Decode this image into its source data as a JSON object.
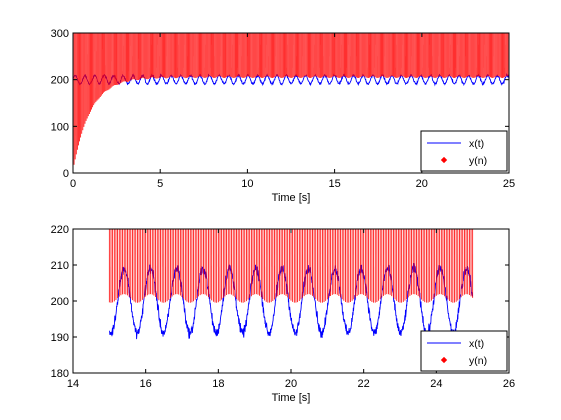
{
  "chart_data": [
    {
      "type": "line",
      "title": "",
      "xlabel": "Time [s]",
      "ylabel": "",
      "xlim": [
        0,
        25
      ],
      "ylim": [
        0,
        300
      ],
      "xticks": [
        "0",
        "5",
        "10",
        "15",
        "20",
        "25"
      ],
      "yticks": [
        "0",
        "100",
        "200",
        "300"
      ],
      "grid": false,
      "legend": "bottom-right",
      "series": [
        {
          "name": "x(t)",
          "style": "line",
          "color": "#0000ff",
          "model": {
            "t_start": 0,
            "t_end": 25,
            "mean": 200,
            "amplitude": 9,
            "period_s": 0.55,
            "noise": 2.5
          }
        },
        {
          "name": "y(n)",
          "style": "markers",
          "color": "#ff0000",
          "model": {
            "t_start": 0,
            "t_end": 25,
            "final_value": 200,
            "time_constant_s": 1.0,
            "ripple": 2
          }
        }
      ]
    },
    {
      "type": "line",
      "title": "",
      "xlabel": "Time [s]",
      "ylabel": "",
      "xlim": [
        14,
        26
      ],
      "ylim": [
        180,
        220
      ],
      "xticks": [
        "14",
        "16",
        "18",
        "20",
        "22",
        "24",
        "26"
      ],
      "yticks": [
        "180",
        "190",
        "200",
        "210",
        "220"
      ],
      "grid": false,
      "legend": "bottom-right",
      "series": [
        {
          "name": "x(t)",
          "style": "line",
          "color": "#0000ff",
          "model": {
            "t_start": 15,
            "t_end": 25,
            "mean": 200,
            "amplitude": 9,
            "period_s": 0.725,
            "noise": 1.5
          }
        },
        {
          "name": "y(n)",
          "style": "markers",
          "color": "#ff0000",
          "model": {
            "t_start": 15,
            "t_end": 25,
            "mean": 200,
            "amplitude": 1.2,
            "period_s": 0.725
          }
        }
      ]
    }
  ]
}
